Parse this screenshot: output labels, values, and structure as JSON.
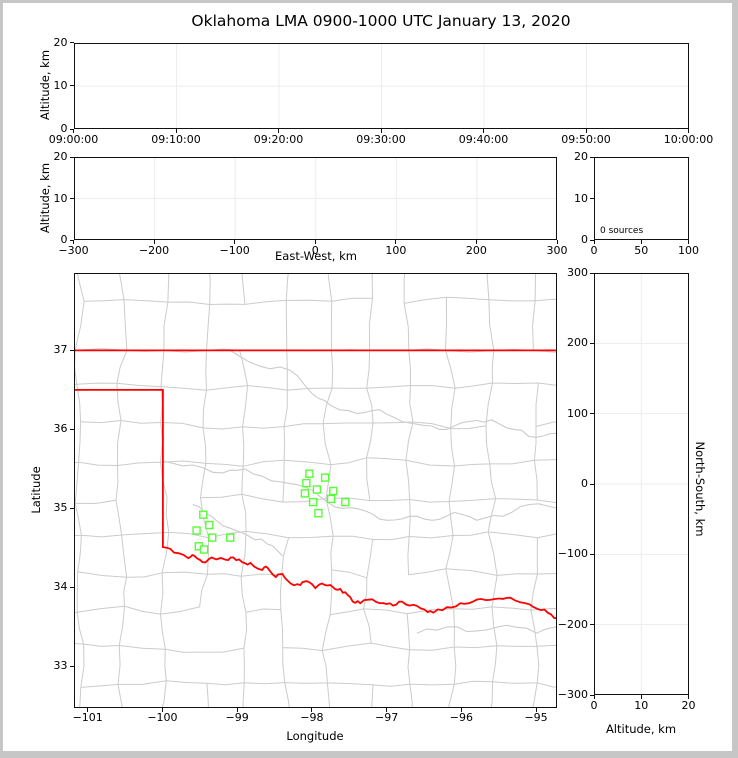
{
  "title": "Oklahoma LMA 0900-1000 UTC January 13, 2020",
  "colors": {
    "state_border": "#ff0000",
    "station_marker": "#55ff33",
    "county_line": "#cbcbcb",
    "gridline": "#ededed",
    "axis": "#111111",
    "figure_frame": "#c6c6c6"
  },
  "chart_data": [
    {
      "id": "time-altitude-panel",
      "type": "scatter",
      "xlabel": "",
      "ylabel": "Altitude, km",
      "x_ticks": [
        "09:00:00",
        "09:10:00",
        "09:20:00",
        "09:30:00",
        "09:40:00",
        "09:50:00",
        "10:00:00"
      ],
      "ylim": [
        0,
        20
      ],
      "y_ticks": [
        0,
        10,
        20
      ],
      "points": []
    },
    {
      "id": "east-west-altitude-panel",
      "type": "scatter",
      "xlabel": "East-West, km",
      "ylabel": "Altitude, km",
      "xlim": [
        -300,
        300
      ],
      "x_ticks": [
        -300,
        -200,
        -100,
        0,
        100,
        200,
        300
      ],
      "ylim": [
        0,
        20
      ],
      "y_ticks": [
        0,
        10,
        20
      ],
      "points": []
    },
    {
      "id": "altitude-histogram-panel",
      "type": "bar",
      "annotation": "0 sources",
      "xlim": [
        0,
        100
      ],
      "x_ticks": [
        0,
        50,
        100
      ],
      "ylim": [
        0,
        20
      ],
      "y_ticks": [
        0,
        10,
        20
      ],
      "values": []
    },
    {
      "id": "plan-view-map",
      "type": "scatter",
      "xlabel": "Longitude",
      "ylabel": "Latitude",
      "xlim": [
        -101.19,
        -94.72
      ],
      "x_ticks": [
        -101,
        -100,
        -99,
        -98,
        -97,
        -96,
        -95
      ],
      "ylim": [
        32.48,
        37.98
      ],
      "y_ticks": [
        33,
        34,
        35,
        36,
        37
      ],
      "marker": "open-square",
      "marker_size_px": 7,
      "stations": [
        [
          -98.04,
          35.44
        ],
        [
          -97.83,
          35.39
        ],
        [
          -98.08,
          35.32
        ],
        [
          -97.94,
          35.24
        ],
        [
          -97.72,
          35.22
        ],
        [
          -98.1,
          35.19
        ],
        [
          -97.75,
          35.12
        ],
        [
          -97.99,
          35.08
        ],
        [
          -97.56,
          35.08
        ],
        [
          -97.92,
          34.94
        ],
        [
          -99.46,
          34.92
        ],
        [
          -99.38,
          34.79
        ],
        [
          -99.55,
          34.72
        ],
        [
          -99.34,
          34.63
        ],
        [
          -99.1,
          34.63
        ],
        [
          -99.52,
          34.52
        ],
        [
          -99.45,
          34.48
        ]
      ],
      "state_border": {
        "kansas_line": [
          [
            -101.19,
            37.0
          ],
          [
            -94.72,
            37.0
          ]
        ],
        "panhandle_texas_line": [
          [
            -101.19,
            36.5
          ],
          [
            -100.0,
            36.5
          ],
          [
            -100.0,
            34.51
          ]
        ],
        "red_river": [
          [
            -100.0,
            34.51
          ],
          [
            -99.85,
            34.44
          ],
          [
            -99.66,
            34.37
          ],
          [
            -99.58,
            34.4
          ],
          [
            -99.47,
            34.32
          ],
          [
            -99.35,
            34.38
          ],
          [
            -99.16,
            34.35
          ],
          [
            -99.06,
            34.38
          ],
          [
            -98.94,
            34.32
          ],
          [
            -98.83,
            34.31
          ],
          [
            -98.67,
            34.22
          ],
          [
            -98.6,
            34.25
          ],
          [
            -98.49,
            34.13
          ],
          [
            -98.4,
            34.17
          ],
          [
            -98.29,
            34.05
          ],
          [
            -98.16,
            34.03
          ],
          [
            -98.08,
            34.08
          ],
          [
            -97.96,
            33.99
          ],
          [
            -97.87,
            34.05
          ],
          [
            -97.76,
            34.03
          ],
          [
            -97.66,
            33.97
          ],
          [
            -97.56,
            33.94
          ],
          [
            -97.46,
            33.82
          ],
          [
            -97.36,
            33.8
          ],
          [
            -97.2,
            33.85
          ],
          [
            -97.05,
            33.8
          ],
          [
            -96.92,
            33.77
          ],
          [
            -96.8,
            33.82
          ],
          [
            -96.65,
            33.78
          ],
          [
            -96.5,
            33.72
          ],
          [
            -96.38,
            33.68
          ],
          [
            -96.2,
            33.75
          ],
          [
            -96.02,
            33.8
          ],
          [
            -95.85,
            33.82
          ],
          [
            -95.68,
            33.84
          ],
          [
            -95.5,
            33.86
          ],
          [
            -95.35,
            33.87
          ],
          [
            -95.15,
            33.8
          ],
          [
            -94.99,
            33.73
          ],
          [
            -94.85,
            33.68
          ],
          [
            -94.72,
            33.61
          ]
        ]
      }
    },
    {
      "id": "north-south-altitude-panel",
      "type": "scatter",
      "xlabel": "Altitude, km",
      "ylabel": "North-South, km",
      "xlim": [
        0,
        20
      ],
      "x_ticks": [
        0,
        10,
        20
      ],
      "ylim": [
        -300,
        300
      ],
      "y_ticks": [
        -300,
        -200,
        -100,
        0,
        100,
        200,
        300
      ],
      "points": []
    }
  ]
}
